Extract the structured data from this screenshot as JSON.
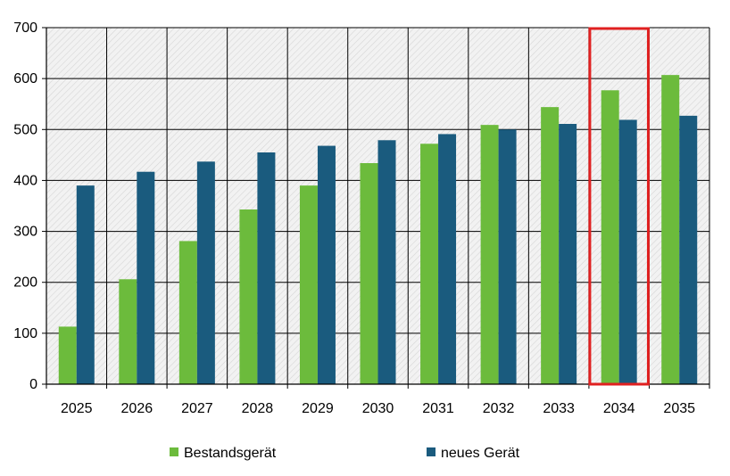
{
  "chart_data": {
    "type": "bar",
    "title": "",
    "xlabel": "",
    "ylabel": "",
    "categories": [
      "2025",
      "2026",
      "2027",
      "2028",
      "2029",
      "2030",
      "2031",
      "2032",
      "2033",
      "2034",
      "2035"
    ],
    "series": [
      {
        "name": "Bestandsgerät",
        "color": "#6cbb3c",
        "values": [
          113,
          206,
          281,
          343,
          390,
          434,
          472,
          509,
          544,
          577,
          607
        ]
      },
      {
        "name": "neues Gerät",
        "color": "#1a5b7e",
        "values": [
          390,
          417,
          437,
          455,
          468,
          479,
          491,
          500,
          511,
          519,
          527
        ]
      }
    ],
    "ylim": [
      0,
      700
    ],
    "yticks": [
      0,
      100,
      200,
      300,
      400,
      500,
      600,
      700
    ],
    "grid": true,
    "plot_background": "hatched light gray",
    "highlight": {
      "category": "2034",
      "color": "#e02020"
    },
    "legend": {
      "position": "bottom"
    }
  }
}
